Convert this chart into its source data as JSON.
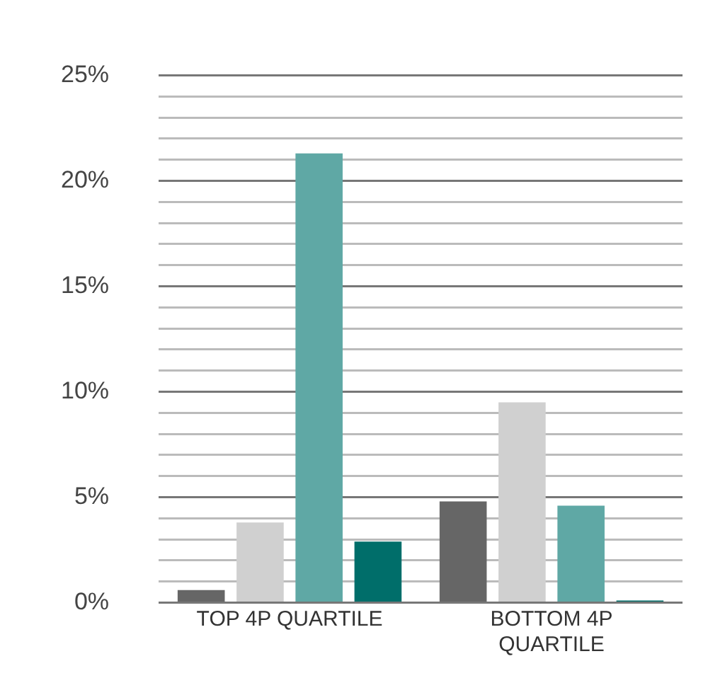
{
  "chart_data": {
    "type": "bar",
    "categories": [
      "TOP 4P QUARTILE",
      "BOTTOM 4P QUARTILE"
    ],
    "series": [
      {
        "color": "#666666",
        "values": [
          0.6,
          4.8
        ]
      },
      {
        "color": "#d0d0d0",
        "values": [
          3.8,
          9.5
        ]
      },
      {
        "color": "#5fa8a5",
        "values": [
          21.3,
          4.6
        ]
      },
      {
        "color": "#006e6a",
        "values": [
          2.9,
          0.1
        ]
      }
    ],
    "ylim": [
      0,
      25
    ],
    "yticks": [
      {
        "value": 0,
        "label": "0%"
      },
      {
        "value": 1,
        "label": null
      },
      {
        "value": 2,
        "label": null
      },
      {
        "value": 3,
        "label": null
      },
      {
        "value": 4,
        "label": null
      },
      {
        "value": 5,
        "label": "5%"
      },
      {
        "value": 6,
        "label": null
      },
      {
        "value": 7,
        "label": null
      },
      {
        "value": 8,
        "label": null
      },
      {
        "value": 9,
        "label": null
      },
      {
        "value": 10,
        "label": "10%"
      },
      {
        "value": 11,
        "label": null
      },
      {
        "value": 12,
        "label": null
      },
      {
        "value": 13,
        "label": null
      },
      {
        "value": 14,
        "label": null
      },
      {
        "value": 15,
        "label": "15%"
      },
      {
        "value": 16,
        "label": null
      },
      {
        "value": 17,
        "label": null
      },
      {
        "value": 18,
        "label": null
      },
      {
        "value": 19,
        "label": null
      },
      {
        "value": 20,
        "label": "20%"
      },
      {
        "value": 21,
        "label": null
      },
      {
        "value": 22,
        "label": null
      },
      {
        "value": 23,
        "label": null
      },
      {
        "value": 24,
        "label": null
      },
      {
        "value": 25,
        "label": "25%"
      }
    ],
    "grid": "y",
    "legend": false
  }
}
